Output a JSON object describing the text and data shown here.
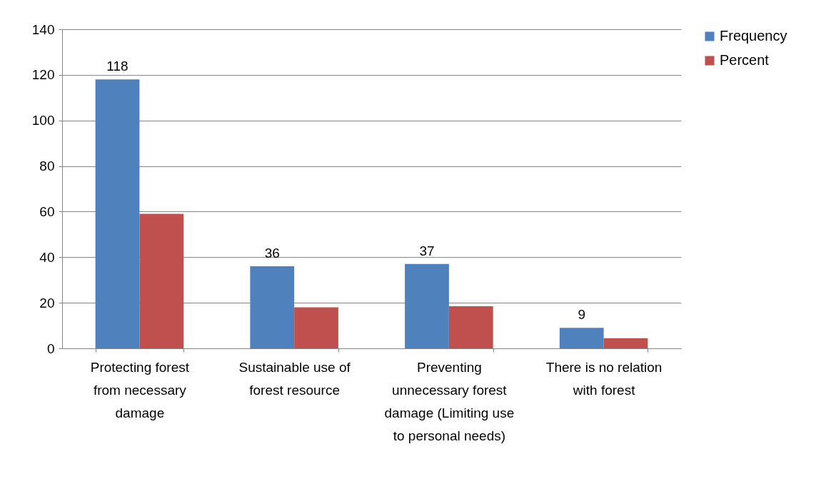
{
  "chart_data": {
    "type": "bar",
    "categories": [
      "Protecting forest from necessary damage",
      "Sustainable use of forest resource",
      "Preventing unnecessary forest damage (Limiting use to personal needs)",
      "There is no relation with forest"
    ],
    "series": [
      {
        "name": "Frequency",
        "color": "#4f81bd",
        "values": [
          118,
          36,
          37,
          9
        ],
        "value_labels": [
          "118",
          "36",
          "37",
          "9"
        ]
      },
      {
        "name": "Percent",
        "color": "#c0504d",
        "values": [
          59,
          18,
          18.5,
          4.5
        ]
      }
    ],
    "ylim": [
      0,
      140
    ],
    "yticks": [
      0,
      20,
      40,
      60,
      80,
      100,
      120,
      140
    ],
    "grid": "y",
    "legend": "right"
  }
}
